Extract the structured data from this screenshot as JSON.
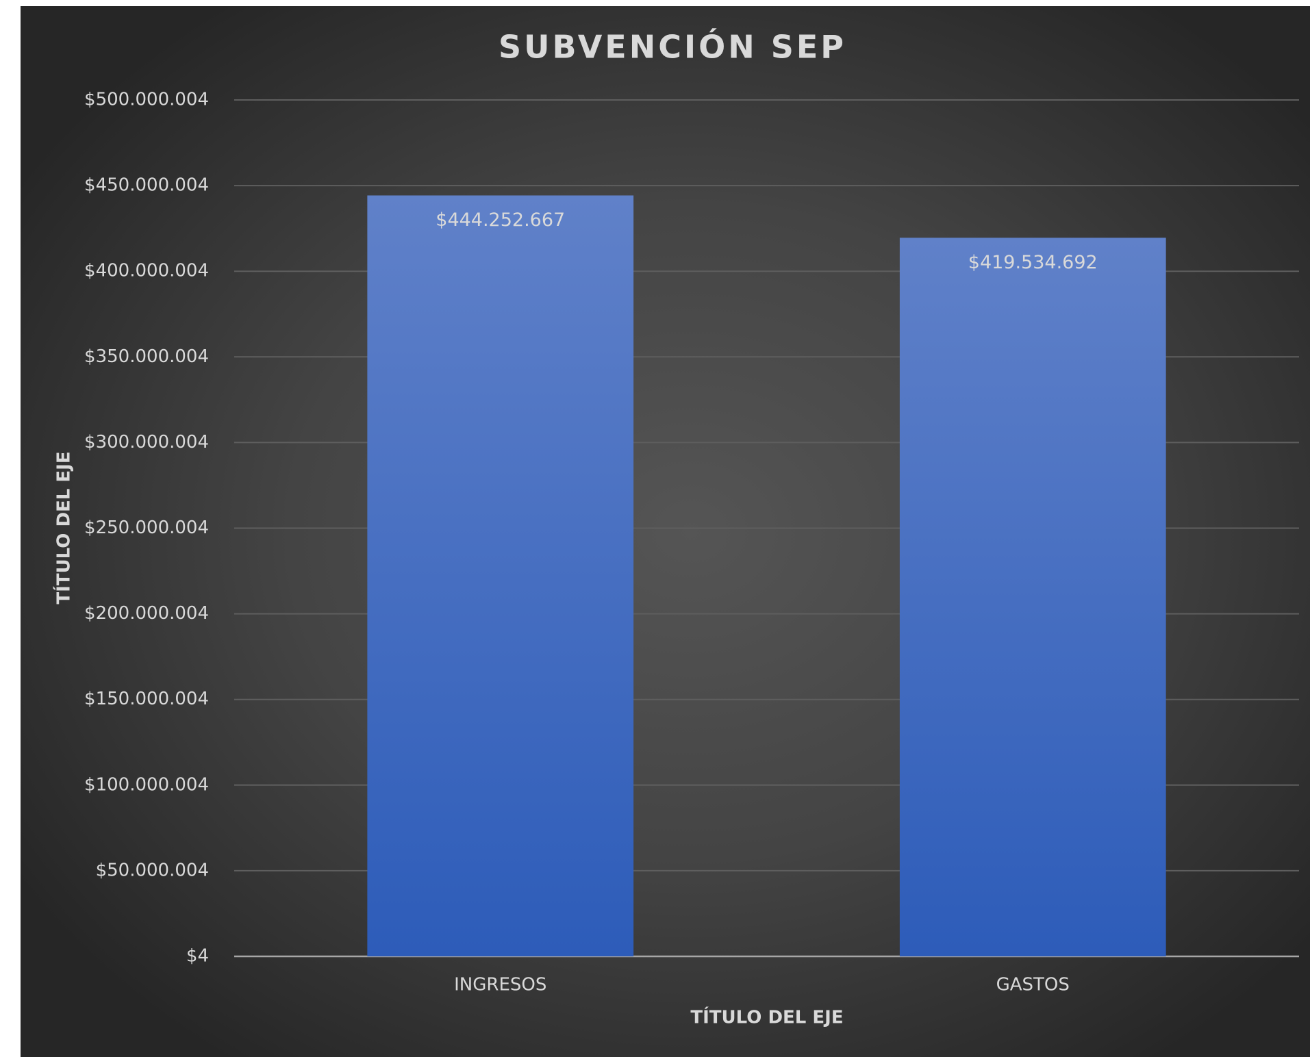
{
  "chart_data": {
    "type": "bar",
    "title": "SUBVENCIÓN SEP",
    "x_label": "TÍTULO DEL EJE",
    "y_label": "TÍTULO DEL EJE",
    "categories": [
      "INGRESOS",
      "GASTOS"
    ],
    "values": [
      444252667,
      419534692
    ],
    "value_labels": [
      "$444.252.667",
      "$419.534.692"
    ],
    "color": "#4472c4",
    "ylim": [
      4,
      500000004
    ],
    "yticks": [
      {
        "value": 4,
        "label": "$4"
      },
      {
        "value": 50000004,
        "label": "$50.000.004"
      },
      {
        "value": 100000004,
        "label": "$100.000.004"
      },
      {
        "value": 150000004,
        "label": "$150.000.004"
      },
      {
        "value": 200000004,
        "label": "$200.000.004"
      },
      {
        "value": 250000004,
        "label": "$250.000.004"
      },
      {
        "value": 300000004,
        "label": "$300.000.004"
      },
      {
        "value": 350000004,
        "label": "$350.000.004"
      },
      {
        "value": 400000004,
        "label": "$400.000.004"
      },
      {
        "value": 450000004,
        "label": "$450.000.004"
      },
      {
        "value": 500000004,
        "label": "$500.000.004"
      }
    ],
    "grid": true
  }
}
